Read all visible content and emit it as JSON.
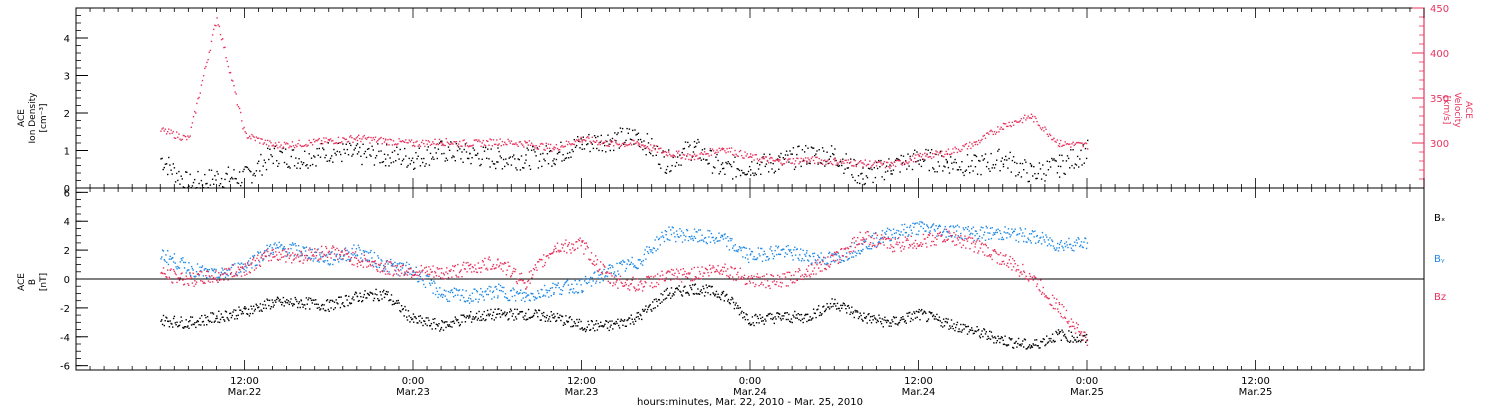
{
  "colors": {
    "black": "#000000",
    "pink": "#e8335e",
    "blue": "#1e88e5"
  },
  "chart_data": [
    {
      "type": "scatter",
      "panel": "top",
      "left_axis": {
        "title_lines": [
          "ACE",
          "Ion Density",
          "[cm⁻³]"
        ],
        "ylim": [
          0,
          4.8
        ],
        "ticks": [
          "0",
          "1",
          "2",
          "3",
          "4"
        ]
      },
      "right_axis": {
        "title_lines": [
          "ACE",
          "Velocity",
          "[km/s]"
        ],
        "ylim": [
          250,
          450
        ],
        "ticks": [
          "300",
          "350",
          "400",
          "450"
        ]
      },
      "series": [
        {
          "color": "#000000",
          "axis": "left",
          "x": [
            6,
            8,
            10,
            12,
            14,
            16,
            18,
            20,
            22,
            24,
            26,
            28,
            30,
            32,
            34,
            36,
            38,
            40,
            42,
            44,
            46,
            48,
            50,
            52,
            54,
            56,
            58,
            60,
            62,
            64,
            66,
            68,
            70,
            72
          ],
          "y": [
            0.8,
            0.1,
            0.3,
            0.3,
            0.9,
            0.8,
            1.0,
            0.9,
            0.9,
            0.8,
            1.0,
            0.9,
            0.8,
            0.8,
            0.9,
            1.2,
            1.3,
            1.4,
            0.7,
            1.1,
            0.5,
            0.6,
            0.7,
            0.9,
            0.9,
            0.3,
            0.6,
            0.8,
            0.7,
            0.6,
            0.8,
            0.4,
            0.6,
            1.0
          ]
        },
        {
          "color": "#e8335e",
          "axis": "right",
          "x": [
            6,
            8,
            10,
            12,
            14,
            16,
            18,
            20,
            22,
            24,
            26,
            28,
            30,
            32,
            34,
            36,
            38,
            40,
            42,
            44,
            46,
            48,
            50,
            52,
            54,
            56,
            58,
            60,
            62,
            64,
            66,
            68,
            70,
            72
          ],
          "y": [
            315,
            305,
            440,
            310,
            298,
            300,
            303,
            306,
            303,
            300,
            302,
            300,
            302,
            300,
            295,
            305,
            300,
            300,
            290,
            285,
            295,
            285,
            280,
            282,
            280,
            278,
            276,
            285,
            290,
            300,
            320,
            330,
            300,
            298
          ]
        }
      ]
    },
    {
      "type": "scatter",
      "panel": "bottom",
      "left_axis": {
        "title_lines": [
          "ACE",
          "B",
          "[nT]"
        ],
        "ylim": [
          -6.3,
          6.3
        ],
        "ticks": [
          "-6",
          "-4",
          "-2",
          "0",
          "2",
          "4",
          "6"
        ]
      },
      "legend": [
        "Bₓ",
        "Bᵧ",
        "Bz"
      ],
      "series": [
        {
          "name": "Bₓ",
          "color": "#000000",
          "x": [
            6,
            8,
            10,
            12,
            14,
            16,
            18,
            20,
            22,
            24,
            26,
            28,
            30,
            32,
            34,
            36,
            38,
            40,
            42,
            44,
            46,
            48,
            50,
            52,
            54,
            56,
            58,
            60,
            62,
            64,
            66,
            68,
            70,
            72
          ],
          "y": [
            -2.8,
            -3.0,
            -2.6,
            -2.2,
            -1.6,
            -1.6,
            -1.8,
            -1.2,
            -1.0,
            -2.8,
            -3.2,
            -2.6,
            -2.4,
            -2.4,
            -2.6,
            -3.2,
            -3.2,
            -2.6,
            -1.0,
            -0.6,
            -1.0,
            -2.8,
            -2.6,
            -2.6,
            -1.6,
            -2.6,
            -3.0,
            -2.4,
            -3.0,
            -3.6,
            -4.2,
            -4.6,
            -3.8,
            -4.2
          ]
        },
        {
          "name": "Bᵧ",
          "color": "#1e88e5",
          "x": [
            6,
            8,
            10,
            12,
            14,
            16,
            18,
            20,
            22,
            24,
            26,
            28,
            30,
            32,
            34,
            36,
            38,
            40,
            42,
            44,
            46,
            48,
            50,
            52,
            54,
            56,
            58,
            60,
            62,
            64,
            66,
            68,
            70,
            72
          ],
          "y": [
            1.8,
            0.8,
            0.2,
            1.0,
            2.2,
            2.0,
            1.4,
            2.0,
            1.0,
            0.6,
            -1.0,
            -1.2,
            -0.8,
            -1.2,
            -0.6,
            -0.4,
            0.6,
            1.2,
            3.2,
            3.0,
            2.8,
            1.6,
            2.0,
            1.6,
            1.4,
            2.4,
            3.2,
            3.6,
            3.4,
            3.2,
            3.2,
            3.0,
            2.4,
            2.6
          ]
        },
        {
          "name": "Bz",
          "color": "#e8335e",
          "x": [
            6,
            8,
            10,
            12,
            14,
            16,
            18,
            20,
            22,
            24,
            26,
            28,
            30,
            32,
            34,
            36,
            38,
            40,
            42,
            44,
            46,
            48,
            50,
            52,
            54,
            56,
            58,
            60,
            62,
            64,
            66,
            68,
            70,
            72
          ],
          "y": [
            0.4,
            0.0,
            0.2,
            0.8,
            1.8,
            1.6,
            2.0,
            1.4,
            0.8,
            0.6,
            0.4,
            0.8,
            1.2,
            -0.2,
            2.2,
            2.4,
            0.0,
            -0.4,
            0.2,
            0.4,
            0.8,
            0.0,
            -0.2,
            0.6,
            1.4,
            3.0,
            2.4,
            2.6,
            3.0,
            2.4,
            1.4,
            0.2,
            -2.0,
            -4.2
          ]
        }
      ]
    }
  ],
  "x_axis": {
    "xlim": [
      0,
      96
    ],
    "major_ticks": [
      {
        "t": 12,
        "time": "12:00",
        "date": "Mar.22"
      },
      {
        "t": 24,
        "time": "0:00",
        "date": "Mar.23"
      },
      {
        "t": 36,
        "time": "12:00",
        "date": "Mar.23"
      },
      {
        "t": 48,
        "time": "0:00",
        "date": "Mar.24"
      },
      {
        "t": 60,
        "time": "12:00",
        "date": "Mar.24"
      },
      {
        "t": 72,
        "time": "0:00",
        "date": "Mar.25"
      },
      {
        "t": 84,
        "time": "12:00",
        "date": "Mar.25"
      }
    ],
    "xlabel": "hours:minutes, Mar. 22, 2010 - Mar. 25, 2010"
  }
}
